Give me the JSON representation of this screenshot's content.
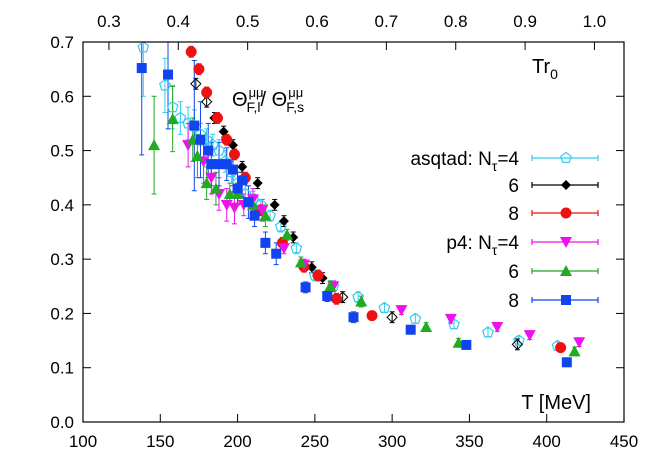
{
  "chart_data": {
    "type": "scatter",
    "title": "",
    "xlabel": "T [MeV]",
    "x2label": "Tr0",
    "ylabel": "",
    "annotation_base": "Θ",
    "annotation_sup": "μμ",
    "annotation_sub1": "F,l",
    "annotation_sub2": "F,s",
    "annotation_sep": "/ ",
    "xlim": [
      100,
      450
    ],
    "ylim": [
      0.0,
      0.7
    ],
    "x2lim": [
      0.2626,
      1.0426
    ],
    "grid": false,
    "legend_position": "right",
    "xticks": [
      "100",
      "150",
      "200",
      "250",
      "300",
      "350",
      "400",
      "450"
    ],
    "yticks": [
      "0.0",
      "0.1",
      "0.2",
      "0.3",
      "0.4",
      "0.5",
      "0.6",
      "0.7"
    ],
    "x2ticks": [
      "0.3",
      "0.4",
      "0.5",
      "0.6",
      "0.7",
      "0.8",
      "0.9",
      "1.0"
    ],
    "series": [
      {
        "name": "asqtad: Nτ=4",
        "legend_prefix": "asqtad: N",
        "legend_sub": "τ",
        "legend_suffix": "=4",
        "color": "#33ccee",
        "marker": "pentagon-open",
        "points": [
          [
            139,
            0.69,
            0.09
          ],
          [
            153,
            0.62,
            0.05
          ],
          [
            158,
            0.58,
            0.04
          ],
          [
            163,
            0.56,
            0.03
          ],
          [
            168,
            0.55,
            0.03
          ],
          [
            172,
            0.545,
            0.03
          ],
          [
            176,
            0.53,
            0.02
          ],
          [
            180,
            0.52,
            0.02
          ],
          [
            184,
            0.51,
            0.02
          ],
          [
            188,
            0.5,
            0.02
          ],
          [
            192,
            0.48,
            0.02
          ],
          [
            196,
            0.46,
            0.02
          ],
          [
            200,
            0.44,
            0.02
          ],
          [
            205,
            0.42,
            0.02
          ],
          [
            210,
            0.41,
            0.015
          ],
          [
            215,
            0.4,
            0.01
          ],
          [
            221,
            0.38,
            0.01
          ],
          [
            228,
            0.36,
            0.01
          ],
          [
            238,
            0.32,
            0.01
          ],
          [
            250,
            0.27,
            0.01
          ],
          [
            262,
            0.25,
            0.01
          ],
          [
            278,
            0.23,
            0.01
          ],
          [
            295,
            0.21,
            0.008
          ],
          [
            315,
            0.19,
            0.008
          ],
          [
            340,
            0.18,
            0.008
          ],
          [
            362,
            0.165,
            0.008
          ],
          [
            382,
            0.15,
            0.008
          ],
          [
            407,
            0.14,
            0.008
          ]
        ]
      },
      {
        "name": "6",
        "legend_prefix": "6",
        "legend_sub": "",
        "legend_suffix": "",
        "color": "#000000",
        "marker": "diamond",
        "points": [
          [
            173,
            0.623,
            0.01
          ],
          [
            180,
            0.59,
            0.01
          ],
          [
            185,
            0.56,
            0.01
          ],
          [
            191,
            0.535,
            0.01
          ],
          [
            197,
            0.51,
            0.01
          ],
          [
            203,
            0.47,
            0.01
          ],
          [
            213,
            0.44,
            0.01
          ],
          [
            224,
            0.4,
            0.01
          ],
          [
            230,
            0.37,
            0.01
          ],
          [
            236,
            0.34,
            0.01
          ],
          [
            248,
            0.285,
            0.01
          ],
          [
            255,
            0.265,
            0.01
          ],
          [
            268,
            0.23,
            0.01
          ],
          [
            300,
            0.193,
            0.01
          ],
          [
            381,
            0.143,
            0.01
          ]
        ]
      },
      {
        "name": "8",
        "legend_prefix": "8",
        "legend_sub": "",
        "legend_suffix": "",
        "color": "#ee1111",
        "marker": "circle",
        "points": [
          [
            170,
            0.682,
            0.01
          ],
          [
            175,
            0.65,
            0.01
          ],
          [
            180,
            0.607,
            0.01
          ],
          [
            187,
            0.56,
            0.01
          ],
          [
            193,
            0.52,
            0.01
          ],
          [
            198,
            0.493,
            0.01
          ],
          [
            205,
            0.45,
            0.01
          ],
          [
            215,
            0.39,
            0.01
          ],
          [
            229,
            0.33,
            0.01
          ],
          [
            243,
            0.286,
            0.01
          ],
          [
            252,
            0.27,
            0.01
          ],
          [
            264,
            0.227,
            0.01
          ],
          [
            287,
            0.196,
            0.008
          ],
          [
            409,
            0.137,
            0.006
          ]
        ]
      },
      {
        "name": "p4: Nτ=4",
        "legend_prefix": "p4: N",
        "legend_sub": "τ",
        "legend_suffix": "=4",
        "color": "#ee11ee",
        "marker": "triangle-down",
        "points": [
          [
            168,
            0.51,
            0.04
          ],
          [
            178,
            0.48,
            0.04
          ],
          [
            183,
            0.45,
            0.03
          ],
          [
            188,
            0.42,
            0.03
          ],
          [
            193,
            0.4,
            0.03
          ],
          [
            198,
            0.395,
            0.03
          ],
          [
            204,
            0.4,
            0.02
          ],
          [
            210,
            0.41,
            0.02
          ],
          [
            216,
            0.39,
            0.02
          ],
          [
            230,
            0.32,
            0.01
          ],
          [
            243,
            0.29,
            0.01
          ],
          [
            262,
            0.25,
            0.01
          ],
          [
            306,
            0.206,
            0.008
          ],
          [
            338,
            0.19,
            0.008
          ],
          [
            368,
            0.175,
            0.008
          ],
          [
            389,
            0.16,
            0.008
          ],
          [
            421,
            0.147,
            0.008
          ]
        ]
      },
      {
        "name": "6",
        "legend_prefix": "6",
        "legend_sub": "",
        "legend_suffix": "",
        "color": "#22aa22",
        "marker": "triangle-up",
        "points": [
          [
            146,
            0.51,
            0.09
          ],
          [
            158,
            0.558,
            0.06
          ],
          [
            171,
            0.52,
            0.04
          ],
          [
            174,
            0.49,
            0.04
          ],
          [
            180,
            0.44,
            0.03
          ],
          [
            186,
            0.43,
            0.03
          ],
          [
            195,
            0.42,
            0.02
          ],
          [
            200,
            0.42,
            0.02
          ],
          [
            210,
            0.4,
            0.02
          ],
          [
            218,
            0.38,
            0.02
          ],
          [
            232,
            0.345,
            0.01
          ],
          [
            241,
            0.294,
            0.01
          ],
          [
            260,
            0.25,
            0.01
          ],
          [
            280,
            0.222,
            0.01
          ],
          [
            322,
            0.175,
            0.008
          ],
          [
            343,
            0.146,
            0.008
          ],
          [
            418,
            0.13,
            0.008
          ]
        ]
      },
      {
        "name": "8",
        "legend_prefix": "8",
        "legend_sub": "",
        "legend_suffix": "",
        "color": "#1144ee",
        "marker": "square",
        "points": [
          [
            138,
            0.652,
            0.16
          ],
          [
            155,
            0.64,
            0.1
          ],
          [
            172,
            0.546,
            0.12
          ],
          [
            176,
            0.52,
            0.07
          ],
          [
            181,
            0.5,
            0.05
          ],
          [
            183,
            0.475,
            0.04
          ],
          [
            188,
            0.475,
            0.04
          ],
          [
            193,
            0.475,
            0.03
          ],
          [
            197,
            0.465,
            0.03
          ],
          [
            200,
            0.43,
            0.03
          ],
          [
            203,
            0.445,
            0.03
          ],
          [
            207,
            0.405,
            0.03
          ],
          [
            211,
            0.38,
            0.02
          ],
          [
            218,
            0.33,
            0.02
          ],
          [
            225,
            0.31,
            0.02
          ],
          [
            244,
            0.248,
            0.01
          ],
          [
            258,
            0.232,
            0.01
          ],
          [
            275,
            0.193,
            0.01
          ],
          [
            312,
            0.17,
            0.008
          ],
          [
            348,
            0.142,
            0.008
          ],
          [
            413,
            0.11,
            0.008
          ]
        ]
      }
    ]
  }
}
